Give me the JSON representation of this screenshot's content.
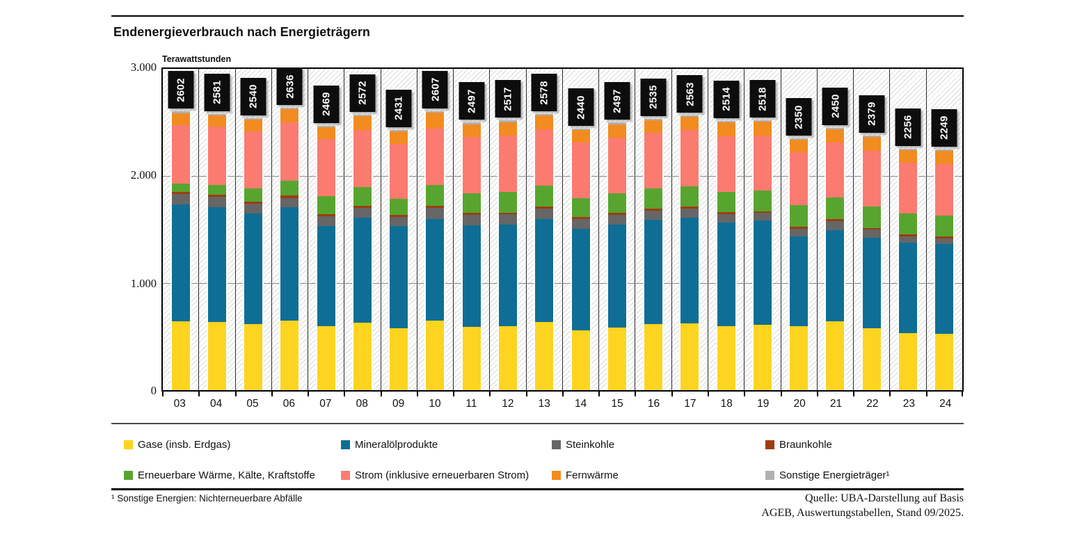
{
  "title": "Endenergieverbrauch nach Energieträgern",
  "y_axis": {
    "unit_label": "Terawattstunden",
    "ticks": [
      "3.000",
      "2.000",
      "1.000",
      "0"
    ]
  },
  "footnote": "¹ Sonstige Energien: Nichterneuerbare Abfälle",
  "source": {
    "line1": "Quelle: UBA-Darstellung auf Basis",
    "line2": "AGEB, Auswertungstabellen, Stand 09/2025."
  },
  "legend": {
    "items": [
      {
        "label": "Gase (insb. Erdgas)",
        "color": "#fdd420"
      },
      {
        "label": "Mineralölprodukte",
        "color": "#0e6e96"
      },
      {
        "label": "Steinkohle",
        "color": "#666666"
      },
      {
        "label": "Braunkohle",
        "color": "#9e3b12"
      },
      {
        "label": "Erneuerbare Wärme, Kälte, Kraftstoffe",
        "color": "#57a52e"
      },
      {
        "label": "Strom (inklusive erneuerbaren Strom)",
        "color": "#fb7b70"
      },
      {
        "label": "Fernwärme",
        "color": "#f28b20"
      },
      {
        "label": "Sonstige Energieträger¹",
        "color": "#b0b0b0"
      }
    ]
  },
  "chart_data": {
    "type": "bar",
    "stacked": true,
    "title": "Endenergieverbrauch nach Energieträgern",
    "ylabel": "Terawattstunden",
    "ylim": [
      0,
      3000
    ],
    "y_gridlines": [
      1000,
      2000
    ],
    "legend_position": "bottom",
    "categories": [
      "03",
      "04",
      "05",
      "06",
      "07",
      "08",
      "09",
      "10",
      "11",
      "12",
      "13",
      "14",
      "15",
      "16",
      "17",
      "18",
      "19",
      "20",
      "21",
      "22",
      "23",
      "24"
    ],
    "totals": [
      2602,
      2581,
      2540,
      2636,
      2469,
      2572,
      2431,
      2607,
      2497,
      2517,
      2578,
      2440,
      2497,
      2535,
      2563,
      2514,
      2518,
      2350,
      2450,
      2379,
      2256,
      2249
    ],
    "series": [
      {
        "name": "Gase (insb. Erdgas)",
        "color": "#fdd420",
        "values": [
          640,
          635,
          617,
          650,
          595,
          630,
          575,
          650,
          590,
          600,
          635,
          560,
          585,
          615,
          625,
          600,
          610,
          600,
          641,
          576,
          533,
          523
        ]
      },
      {
        "name": "Mineralölprodukte",
        "color": "#0e6e96",
        "values": [
          1095,
          1075,
          1035,
          1055,
          940,
          980,
          960,
          950,
          950,
          945,
          965,
          945,
          960,
          975,
          985,
          965,
          975,
          832,
          855,
          849,
          845,
          840
        ]
      },
      {
        "name": "Steinkohle",
        "color": "#666666",
        "values": [
          95,
          95,
          88,
          90,
          90,
          90,
          82,
          100,
          95,
          95,
          95,
          92,
          90,
          88,
          85,
          80,
          70,
          76,
          80,
          72,
          60,
          55
        ]
      },
      {
        "name": "Braunkohle",
        "color": "#9e3b12",
        "values": [
          22,
          22,
          22,
          22,
          20,
          20,
          20,
          18,
          18,
          18,
          20,
          18,
          18,
          18,
          18,
          17,
          16,
          20,
          20,
          18,
          16,
          16
        ]
      },
      {
        "name": "Erneuerbare Wärme, Kälte, Kraftstoffe",
        "color": "#57a52e",
        "values": [
          75,
          90,
          120,
          135,
          170,
          175,
          150,
          195,
          185,
          195,
          195,
          180,
          185,
          185,
          190,
          190,
          190,
          197,
          205,
          200,
          195,
          195
        ]
      },
      {
        "name": "Strom (inklusive erneuerbaren Strom)",
        "color": "#fb7b70",
        "values": [
          545,
          545,
          534,
          545,
          530,
          535,
          512,
          528,
          525,
          525,
          525,
          517,
          520,
          520,
          525,
          520,
          515,
          498,
          512,
          518,
          475,
          480
        ]
      },
      {
        "name": "Fernwärme",
        "color": "#f28b20",
        "values": [
          115,
          105,
          110,
          125,
          110,
          128,
          118,
          152,
          120,
          125,
          129,
          114,
          125,
          120,
          121,
          128,
          128,
          114,
          124,
          133,
          119,
          127
        ]
      },
      {
        "name": "Sonstige Energieträger¹",
        "color": "#b0b0b0",
        "values": [
          15,
          14,
          14,
          14,
          14,
          14,
          14,
          14,
          14,
          14,
          14,
          14,
          14,
          14,
          14,
          14,
          14,
          13,
          13,
          13,
          13,
          13
        ]
      }
    ]
  }
}
